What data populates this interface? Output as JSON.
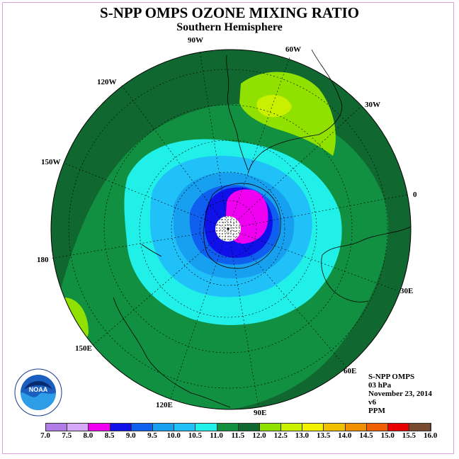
{
  "title": "S-NPP OMPS OZONE MIXING RATIO",
  "subtitle": "Southern Hemisphere",
  "longitude_labels": [
    "90W",
    "60W",
    "30W",
    "0",
    "30E",
    "60E",
    "90E",
    "120E",
    "150E",
    "180",
    "150W",
    "120W"
  ],
  "info": {
    "instrument": "S-NPP OMPS",
    "level": "03 hPa",
    "date": "November 23, 2014",
    "version": "v6",
    "units": "PPM"
  },
  "logo": {
    "name": "noaa-logo",
    "text": "NOAA"
  },
  "colorbar": {
    "ticks": [
      "7.0",
      "7.5",
      "8.0",
      "8.5",
      "9.0",
      "9.5",
      "10.0",
      "10.5",
      "11.0",
      "11.5",
      "12.0",
      "12.5",
      "13.0",
      "13.5",
      "14.0",
      "14.5",
      "15.0",
      "15.5",
      "16.0"
    ],
    "colors": [
      "#b07ce8",
      "#d8a8f8",
      "#f000f0",
      "#1010e8",
      "#1060f0",
      "#18a0f0",
      "#20c0f8",
      "#20f0e8",
      "#109040",
      "#106830",
      "#90e000",
      "#c8f000",
      "#f0f000",
      "#f0c000",
      "#f09000",
      "#f06000",
      "#e80000",
      "#7a4a30"
    ]
  },
  "chart_data": {
    "type": "map",
    "projection": "polar stereographic, south pole",
    "quantity": "ozone mixing ratio",
    "units": "PPM",
    "pressure_level": "03 hPa",
    "levels": [
      7.0,
      7.5,
      8.0,
      8.5,
      9.0,
      9.5,
      10.0,
      10.5,
      11.0,
      11.5,
      12.0,
      12.5,
      13.0,
      13.5,
      14.0,
      14.5,
      15.0,
      15.5,
      16.0
    ]
  }
}
